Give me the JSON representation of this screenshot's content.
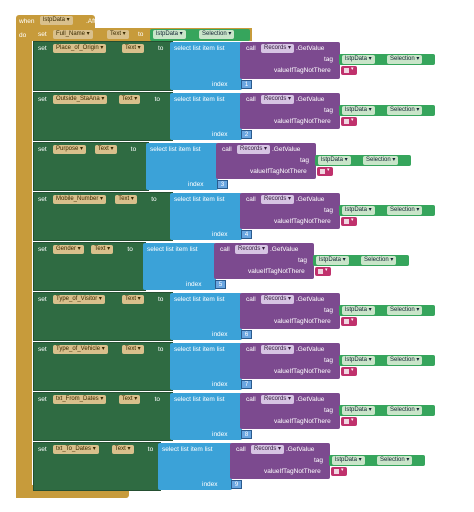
{
  "event": {
    "when": "when",
    "component": "lstpData",
    "event_name": ".AfterPicking",
    "do": "do"
  },
  "first_set": {
    "set": "set",
    "target": "Full_Name",
    "prop": "Text",
    "to": "to",
    "source": "lstpData",
    "source_prop": "Selection"
  },
  "labels": {
    "set": "set",
    "to": "to",
    "select": "select list item  list",
    "index": "index",
    "call": "call",
    "records": "Records",
    "getvalue": ".GetValue",
    "tag": "tag",
    "valueiftagnotthere": "valueIfTagNotThere",
    "lstpdata": "lstpData",
    "selection": "Selection",
    "text": "Text"
  },
  "rows": [
    {
      "target": "Place_of_Origin",
      "index": "1"
    },
    {
      "target": "Outside_StaAna",
      "index": "2"
    },
    {
      "target": "Purpose",
      "index": "3"
    },
    {
      "target": "Mobile_Number",
      "index": "4"
    },
    {
      "target": "Gender",
      "index": "5"
    },
    {
      "target": "Type_of_Visitor",
      "index": "6"
    },
    {
      "target": "Type_of_Vehicle",
      "index": "7"
    },
    {
      "target": "txt_From_Dates",
      "index": "8"
    },
    {
      "target": "txt_To_Dates",
      "index": "9"
    }
  ]
}
